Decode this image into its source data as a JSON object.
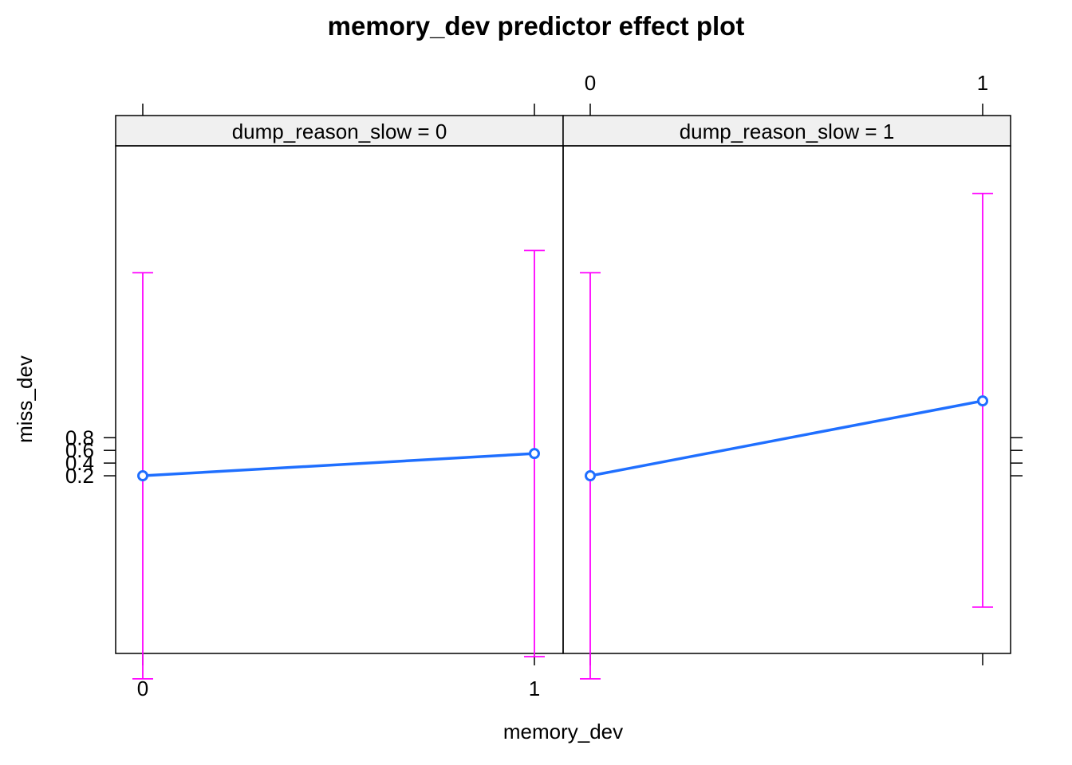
{
  "chart_data": {
    "type": "line",
    "title": "memory_dev predictor effect plot",
    "xlabel": "memory_dev",
    "ylabel": "miss_dev",
    "x_ticks": [
      "0",
      "1"
    ],
    "y_ticks": [
      "0.2",
      "0.4",
      "0.6",
      "0.8"
    ],
    "ylim": [
      -2.6,
      5.4
    ],
    "panels": [
      {
        "strip": "dump_reason_slow = 0",
        "x": [
          0,
          1
        ],
        "fit": [
          0.2,
          0.55
        ],
        "lower": [
          -3.0,
          -2.65
        ],
        "upper": [
          3.4,
          3.75
        ]
      },
      {
        "strip": "dump_reason_slow = 1",
        "x": [
          0,
          1
        ],
        "fit": [
          0.2,
          1.38
        ],
        "lower": [
          -3.0,
          -1.87
        ],
        "upper": [
          3.4,
          4.65
        ]
      }
    ],
    "colors": {
      "fit": "#1f6fff",
      "ci": "#ff00ff"
    }
  }
}
